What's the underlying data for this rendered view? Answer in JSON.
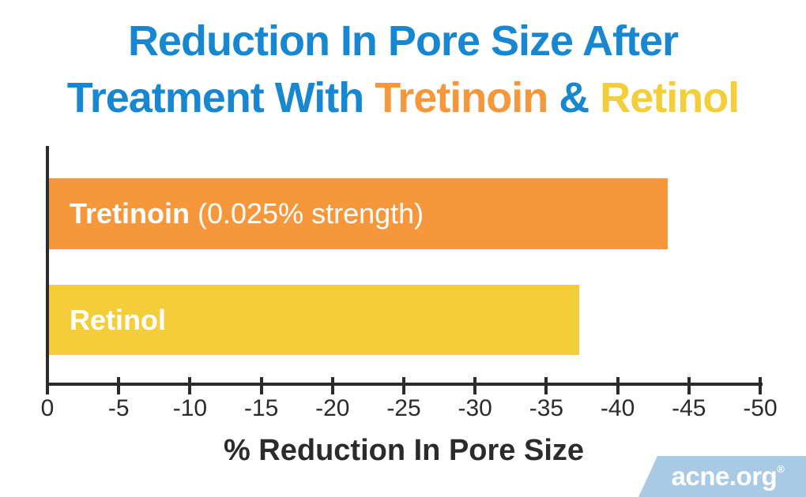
{
  "title": {
    "line1": "Reduction In Pore Size After",
    "line2_prefix": "Treatment With ",
    "line2_tretinoin": "Tretinoin",
    "line2_amp": " & ",
    "line2_retinol": "Retinol"
  },
  "colors": {
    "title_blue": "#1787d2",
    "tretinoin_orange": "#f6973b",
    "retinol_yellow": "#f4ce3a",
    "axis_dark": "#2b2b2b",
    "bar_label_white": "#ffffff",
    "logo_bg": "#a8cae4"
  },
  "chart_data": {
    "type": "bar",
    "orientation": "horizontal",
    "title": "Reduction In Pore Size After Treatment With Tretinoin & Retinol",
    "categories": [
      "Tretinoin (0.025% strength)",
      "Retinol"
    ],
    "values": [
      -43.4,
      -37.2
    ],
    "bar_labels": [
      {
        "bold": "Tretinoin",
        "regular": " (0.025% strength)"
      },
      {
        "bold": "Retinol",
        "regular": ""
      }
    ],
    "xlabel": "% Reduction In Pore Size",
    "ylabel": "",
    "xlim": [
      0,
      -50
    ],
    "x_ticks": [
      "0",
      "-5",
      "-10",
      "-15",
      "-20",
      "-25",
      "-30",
      "-35",
      "-40",
      "-45",
      "-50"
    ],
    "grid": false,
    "legend": "none"
  },
  "footer": {
    "logo_text": "acne.org",
    "registered_mark": "®"
  }
}
